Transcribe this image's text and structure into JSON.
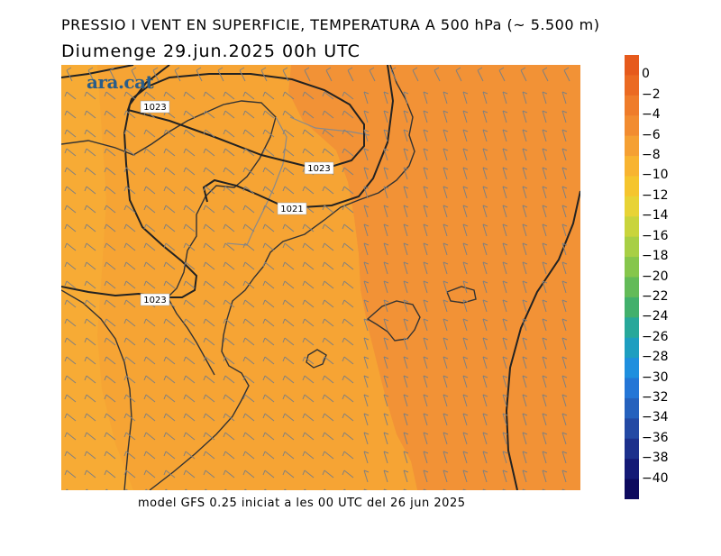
{
  "title": "PRESSIO I VENT EN SUPERFICIE, TEMPERATURA A 500 hPa (~ 5.500 m)",
  "subtitle": "Diumenge  29.jun.2025 00h UTC",
  "footer": "model GFS 0.25 iniciat a les 00 UTC del 26 jun 2025",
  "logo": "ara.cat",
  "isobar_labels": [
    "1023",
    "1023",
    "1021",
    "1023"
  ],
  "colorbar": {
    "labels": [
      "0",
      "−2",
      "−4",
      "−6",
      "−8",
      "−10",
      "−12",
      "−14",
      "−16",
      "−18",
      "−20",
      "−22",
      "−24",
      "−26",
      "−28",
      "−30",
      "−32",
      "−34",
      "−36",
      "−38",
      "−40"
    ],
    "colors": [
      "#e65a1c",
      "#eb6a22",
      "#ef7c2a",
      "#f28c30",
      "#f5a033",
      "#f8b431",
      "#f5c52e",
      "#e8d335",
      "#c9d43c",
      "#a8cf45",
      "#86c64c",
      "#63bb58",
      "#42b06c",
      "#28a89a",
      "#1e9ec0",
      "#1f8fde",
      "#2476d6",
      "#2561bd",
      "#2349a4",
      "#1c308c",
      "#141a76",
      "#0d0a5e"
    ]
  },
  "colors": {
    "warm": "#f29236",
    "cool": "#f7ab35",
    "coast": "#333333",
    "isobar": "#222222",
    "barb": "#808080"
  }
}
